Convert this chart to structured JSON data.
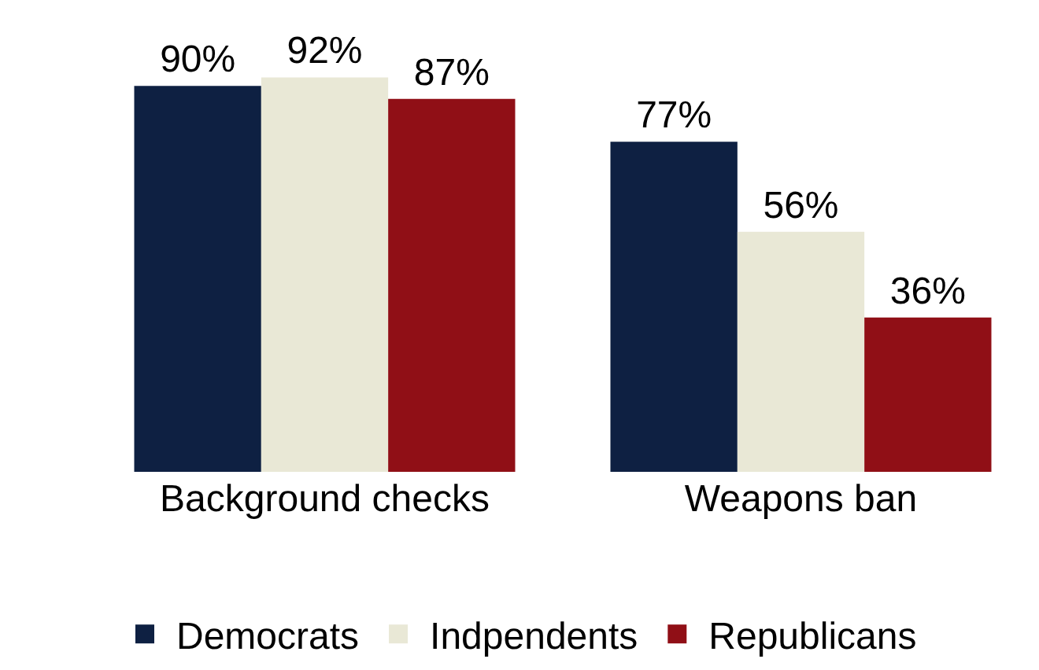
{
  "chart_data": {
    "type": "bar",
    "categories": [
      "Background checks",
      "Weapons ban"
    ],
    "series": [
      {
        "name": "Democrats",
        "color": "#0e2042",
        "values": [
          90,
          77
        ],
        "value_labels": [
          "90%",
          "77%"
        ]
      },
      {
        "name": "Indpendents",
        "color": "#e9e8d6",
        "values": [
          92,
          56
        ],
        "value_labels": [
          "92%",
          "56%"
        ]
      },
      {
        "name": "Republicans",
        "color": "#900f16",
        "values": [
          87,
          36
        ],
        "value_labels": [
          "87%",
          "36%"
        ]
      }
    ],
    "legend": "bottom",
    "tick_labels": "x"
  }
}
